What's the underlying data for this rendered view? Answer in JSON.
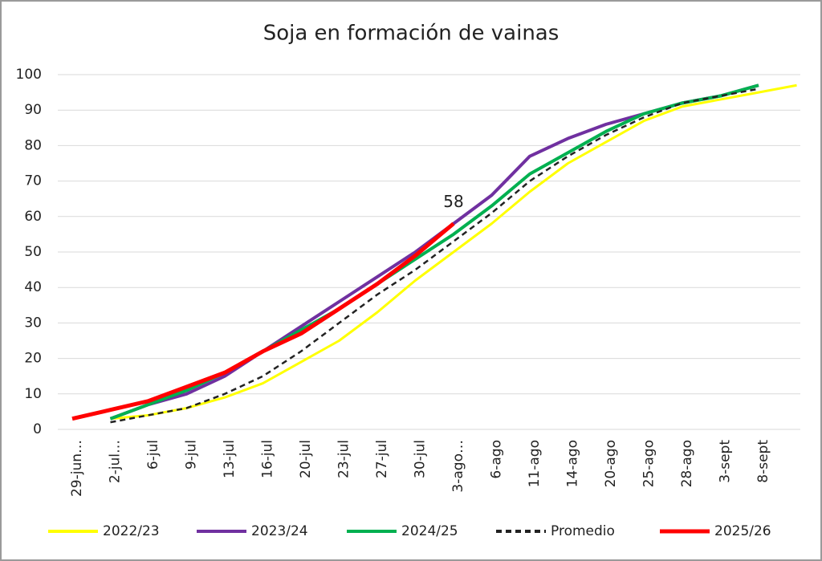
{
  "chart_data": {
    "type": "line",
    "title": "Soja en formación de vainas",
    "categories": [
      "29-jun…",
      "2-jul…",
      "6-jul",
      "9-jul",
      "13-jul",
      "16-jul",
      "20-jul",
      "23-jul",
      "27-jul",
      "30-jul",
      "3-ago…",
      "6-ago",
      "11-ago",
      "14-ago",
      "20-ago",
      "25-ago",
      "28-ago",
      "3-sept",
      "8-sept",
      null
    ],
    "ylim": [
      0,
      100
    ],
    "yticks": [
      0,
      10,
      20,
      30,
      40,
      50,
      60,
      70,
      80,
      90,
      100
    ],
    "grid": true,
    "series": [
      {
        "name": "2022/23",
        "color": "#ffff00",
        "width": 3,
        "dash": false,
        "values": [
          null,
          3,
          4,
          6,
          9,
          13,
          19,
          25,
          33,
          42,
          50,
          58,
          67,
          75,
          81,
          87,
          91,
          93,
          95,
          97
        ]
      },
      {
        "name": "2023/24",
        "color": "#7030a0",
        "width": 4,
        "dash": false,
        "values": [
          null,
          3,
          7,
          10,
          15,
          22,
          29,
          36,
          43,
          50,
          58,
          66,
          77,
          82,
          86,
          89,
          92,
          94,
          97,
          null
        ]
      },
      {
        "name": "2024/25",
        "color": "#00b050",
        "width": 4,
        "dash": false,
        "values": [
          null,
          3,
          7,
          11,
          16,
          22,
          28,
          34,
          41,
          48,
          55,
          63,
          72,
          78,
          84,
          89,
          92,
          94,
          97,
          null
        ]
      },
      {
        "name": "Promedio",
        "color": "#222222",
        "width": 2.5,
        "dash": true,
        "values": [
          null,
          2,
          4,
          6,
          10,
          15,
          22,
          30,
          38,
          45,
          53,
          61,
          70,
          77,
          83,
          88,
          92,
          94,
          96,
          null
        ]
      },
      {
        "name": "2025/26",
        "color": "#ff0000",
        "width": 5,
        "dash": false,
        "values": [
          3,
          5.5,
          8,
          12,
          16,
          22,
          27,
          34,
          41,
          49,
          58,
          null,
          null,
          null,
          null,
          null,
          null,
          null,
          null,
          null
        ]
      }
    ],
    "annotations": [
      {
        "text": "58",
        "series": 4,
        "index": 10
      }
    ]
  }
}
